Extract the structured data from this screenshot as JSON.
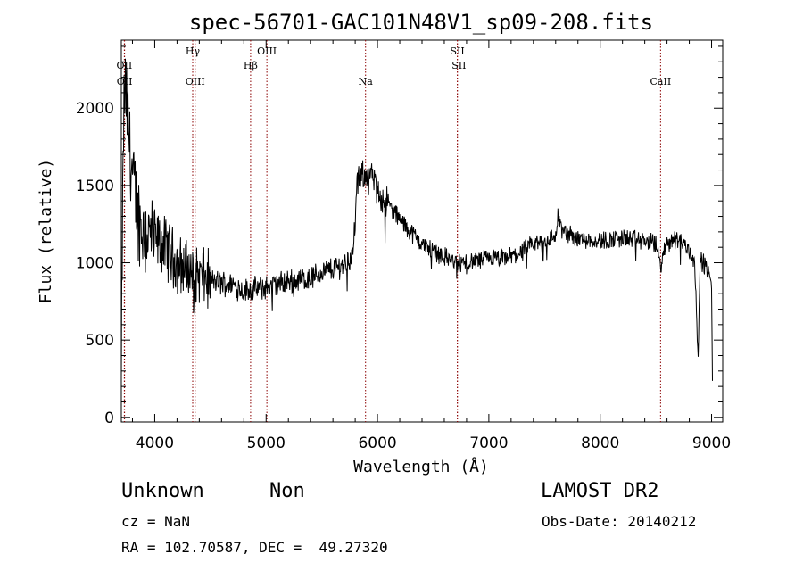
{
  "chart_data": {
    "type": "line",
    "title": "spec-56701-GAC101N48V1_sp09-208.fits",
    "xlabel": "Wavelength (Å)",
    "ylabel": "Flux (relative)",
    "xlim": [
      3700,
      9100
    ],
    "ylim": [
      -30,
      2440
    ],
    "xticks": [
      4000,
      5000,
      6000,
      7000,
      8000,
      9000
    ],
    "yticks": [
      0,
      500,
      1000,
      1500,
      2000
    ],
    "line_color": "#000000",
    "marker_color": "#8b0000",
    "line_markers": [
      {
        "label": "OII",
        "wavelength": 3727,
        "row": 2
      },
      {
        "label": "OII",
        "wavelength": 3729,
        "row": 3
      },
      {
        "label": "Hγ",
        "wavelength": 4341,
        "row": 0
      },
      {
        "label": "OIII",
        "wavelength": 4363,
        "row": 3
      },
      {
        "label": "Hβ",
        "wavelength": 4861,
        "row": 2
      },
      {
        "label": "OIII",
        "wavelength": 5007,
        "row": 0
      },
      {
        "label": "Na",
        "wavelength": 5893,
        "row": 3
      },
      {
        "label": "SII",
        "wavelength": 6717,
        "row": 1
      },
      {
        "label": "SII",
        "wavelength": 6731,
        "row": 2
      },
      {
        "label": "CaII",
        "wavelength": 8542,
        "row": 3
      }
    ],
    "spectrum_anchors": [
      [
        3700,
        200
      ],
      [
        3710,
        1200
      ],
      [
        3720,
        1900
      ],
      [
        3735,
        2150
      ],
      [
        3760,
        1900
      ],
      [
        3800,
        1550
      ],
      [
        3850,
        1300
      ],
      [
        3900,
        1200
      ],
      [
        4000,
        1150
      ],
      [
        4100,
        1100
      ],
      [
        4200,
        1000
      ],
      [
        4300,
        950
      ],
      [
        4400,
        920
      ],
      [
        4500,
        880
      ],
      [
        4600,
        870
      ],
      [
        4700,
        860
      ],
      [
        4800,
        820
      ],
      [
        4900,
        830
      ],
      [
        5000,
        840
      ],
      [
        5100,
        860
      ],
      [
        5200,
        880
      ],
      [
        5300,
        890
      ],
      [
        5400,
        900
      ],
      [
        5500,
        940
      ],
      [
        5600,
        960
      ],
      [
        5700,
        990
      ],
      [
        5780,
        1050
      ],
      [
        5820,
        1520
      ],
      [
        5900,
        1580
      ],
      [
        5950,
        1560
      ],
      [
        6000,
        1450
      ],
      [
        6100,
        1380
      ],
      [
        6200,
        1280
      ],
      [
        6300,
        1200
      ],
      [
        6400,
        1120
      ],
      [
        6500,
        1080
      ],
      [
        6600,
        1040
      ],
      [
        6700,
        1000
      ],
      [
        6800,
        1000
      ],
      [
        6900,
        1010
      ],
      [
        7000,
        1030
      ],
      [
        7100,
        1020
      ],
      [
        7200,
        1040
      ],
      [
        7300,
        1070
      ],
      [
        7400,
        1120
      ],
      [
        7500,
        1140
      ],
      [
        7600,
        1170
      ],
      [
        7620,
        1300
      ],
      [
        7660,
        1200
      ],
      [
        7800,
        1160
      ],
      [
        7900,
        1150
      ],
      [
        8000,
        1140
      ],
      [
        8100,
        1150
      ],
      [
        8200,
        1160
      ],
      [
        8300,
        1150
      ],
      [
        8400,
        1140
      ],
      [
        8500,
        1120
      ],
      [
        8542,
        980
      ],
      [
        8600,
        1130
      ],
      [
        8700,
        1160
      ],
      [
        8800,
        1080
      ],
      [
        8850,
        1000
      ],
      [
        8880,
        420
      ],
      [
        8900,
        1020
      ],
      [
        8950,
        980
      ],
      [
        9000,
        850
      ],
      [
        9010,
        120
      ]
    ],
    "noise_amplitude_note": "approximate continuum shape; fine noise reproduced in rendering"
  },
  "info": {
    "object_class": "Unknown",
    "object_subclass": "Non",
    "survey": "LAMOST DR2",
    "redshift_text": "cz = NaN",
    "obs_date_text": "Obs-Date: 20140212",
    "coords_text": "RA = 102.70587, DEC =  49.27320"
  }
}
